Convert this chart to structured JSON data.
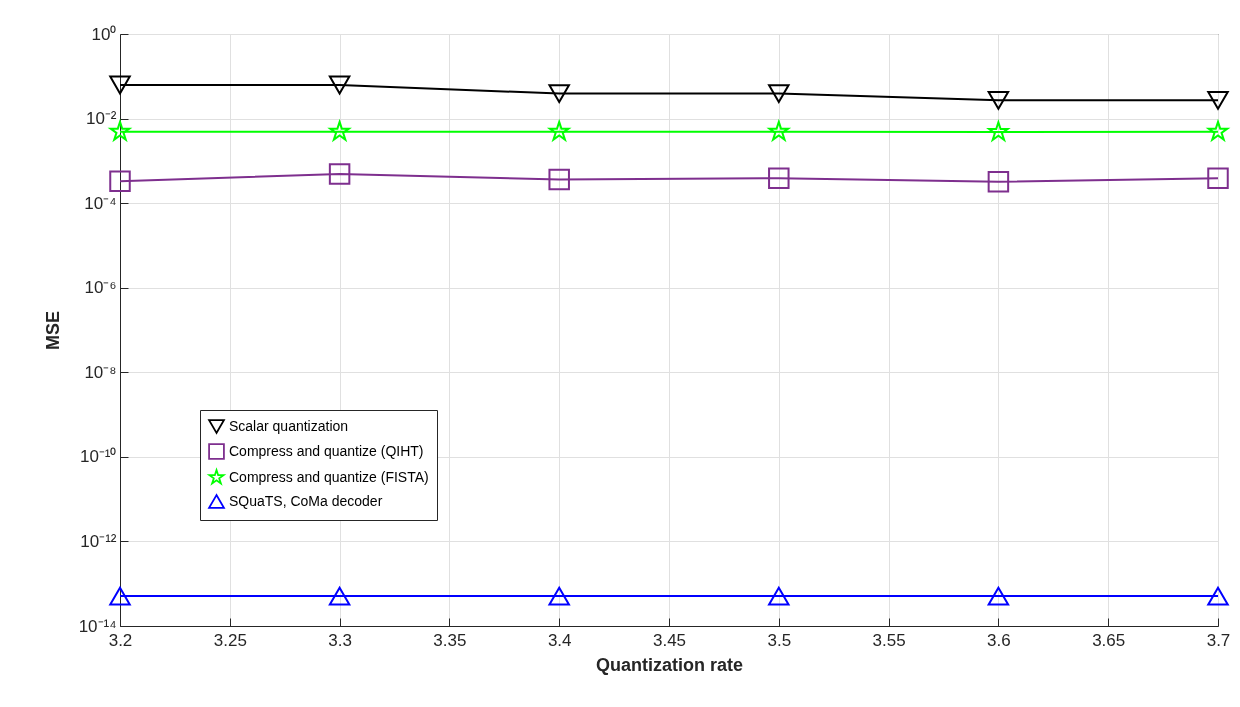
{
  "chart_data": {
    "type": "line",
    "xlabel": "Quantization rate",
    "ylabel": "MSE",
    "x": [
      3.2,
      3.3,
      3.4,
      3.5,
      3.6,
      3.7
    ],
    "series": [
      {
        "name": "Scalar quantization",
        "color": "#000000",
        "marker": "triangle-down",
        "values": [
          0.062,
          0.062,
          0.039,
          0.039,
          0.027,
          0.027
        ]
      },
      {
        "name": "Compress and quantize (QIHT)",
        "color": "#7e2f8e",
        "marker": "square",
        "values": [
          0.00033,
          0.00049,
          0.00036,
          0.00039,
          0.00032,
          0.00039
        ]
      },
      {
        "name": "Compress and quantize (FISTA)",
        "color": "#00ff00",
        "marker": "star",
        "values": [
          0.0049,
          0.0049,
          0.0049,
          0.0049,
          0.0048,
          0.0049
        ]
      },
      {
        "name": "SQuaTS, CoMa decoder",
        "color": "#0000ff",
        "marker": "triangle",
        "values": [
          5.1e-14,
          5.1e-14,
          5.1e-14,
          5.1e-14,
          5.1e-14,
          5.1e-14
        ]
      }
    ],
    "xlim": [
      3.2,
      3.7
    ],
    "xticks": [
      3.2,
      3.25,
      3.3,
      3.35,
      3.4,
      3.45,
      3.5,
      3.55,
      3.6,
      3.65,
      3.7
    ],
    "log": "y",
    "ylim": [
      1e-14,
      1
    ],
    "yticks": [
      {
        "value": 1e-14,
        "label": "10⁻¹⁴"
      },
      {
        "value": 1e-12,
        "label": "10⁻¹²"
      },
      {
        "value": 1e-10,
        "label": "10⁻¹⁰"
      },
      {
        "value": 1e-08,
        "label": "10⁻⁸"
      },
      {
        "value": 1e-06,
        "label": "10⁻⁶"
      },
      {
        "value": 0.0001,
        "label": "10⁻⁴"
      },
      {
        "value": 0.01,
        "label": "10⁻²"
      },
      {
        "value": 1,
        "label": "10⁰"
      }
    ],
    "grid": true,
    "legend": "left",
    "line_style": "solid"
  }
}
